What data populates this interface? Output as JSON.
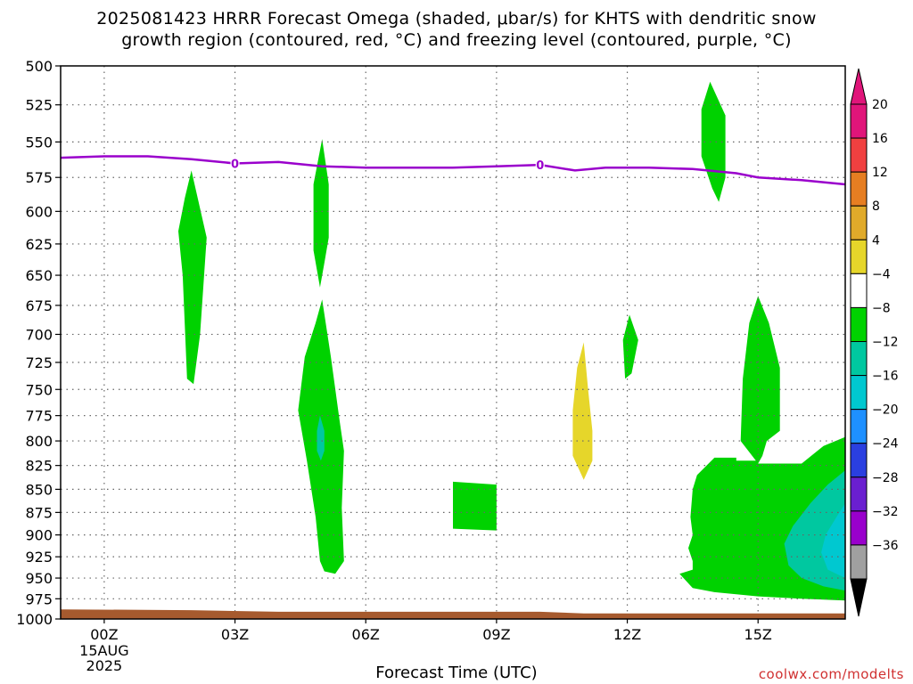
{
  "title_line1": "2025081423 HRRR Forecast Omega (shaded, μbar/s) for KHTS with dendritic snow",
  "title_line2": "growth region (contoured, red, °C) and freezing level (contoured, purple, °C)",
  "xlabel": "Forecast Time (UTC)",
  "credit": "coolwx.com/modelts",
  "chart_data": {
    "type": "contour",
    "x_unit": "forecast hours since 2025-08-15 00Z",
    "xlim": [
      -1.0,
      17.0
    ],
    "xticks": [
      {
        "value": 0,
        "label": "00Z",
        "sub": [
          "15AUG",
          "2025"
        ]
      },
      {
        "value": 3,
        "label": "03Z"
      },
      {
        "value": 6,
        "label": "06Z"
      },
      {
        "value": 9,
        "label": "09Z"
      },
      {
        "value": 12,
        "label": "12Z"
      },
      {
        "value": 15,
        "label": "15Z"
      }
    ],
    "ylabel": "",
    "ylim": [
      1000,
      500
    ],
    "yticks": [
      500,
      525,
      550,
      575,
      600,
      625,
      650,
      675,
      700,
      725,
      750,
      775,
      800,
      825,
      850,
      875,
      900,
      925,
      950,
      975,
      1000
    ],
    "y_scale": "log-pressure",
    "grid": true,
    "terrain": {
      "color": "#a65a2e",
      "top_pressure": [
        [
          -1.0,
          988
        ],
        [
          2.0,
          989
        ],
        [
          4.0,
          991
        ],
        [
          10.0,
          991
        ],
        [
          11.0,
          993
        ],
        [
          17.0,
          993
        ]
      ]
    },
    "freezing_level": {
      "color": "#9a00cc",
      "label": "0",
      "label_positions": [
        [
          3.0,
          565
        ],
        [
          10.0,
          566
        ]
      ],
      "points": [
        [
          -1.0,
          561
        ],
        [
          0.0,
          560
        ],
        [
          1.0,
          560
        ],
        [
          2.0,
          562
        ],
        [
          3.0,
          565
        ],
        [
          4.0,
          564
        ],
        [
          5.0,
          567
        ],
        [
          6.0,
          568
        ],
        [
          7.0,
          568
        ],
        [
          8.0,
          568
        ],
        [
          9.0,
          567
        ],
        [
          10.0,
          566
        ],
        [
          10.8,
          570
        ],
        [
          11.5,
          568
        ],
        [
          12.5,
          568
        ],
        [
          13.5,
          569
        ],
        [
          14.5,
          572
        ],
        [
          15.0,
          575
        ],
        [
          16.0,
          577
        ],
        [
          17.0,
          580
        ]
      ]
    },
    "colorbar": {
      "levels": [
        -36,
        -32,
        -28,
        -24,
        -20,
        -16,
        -12,
        -8,
        -4,
        4,
        8,
        12,
        16,
        20
      ],
      "colors": [
        "#a0a0a0",
        "#9900cc",
        "#6a1fd0",
        "#2a3fe0",
        "#1e90ff",
        "#00c8d0",
        "#00c8a0",
        "#00d200",
        "#ffffff",
        "#e6d62a",
        "#e0aa2a",
        "#e67e22",
        "#f04040",
        "#e0157a"
      ],
      "under_color": "#000000",
      "over_color": "#e0157a"
    },
    "regions": [
      {
        "range": "-8 to -4",
        "color": "#00d200",
        "polygon": [
          [
            2.0,
            570
          ],
          [
            2.35,
            620
          ],
          [
            2.2,
            700
          ],
          [
            2.05,
            745
          ],
          [
            1.9,
            740
          ],
          [
            1.8,
            650
          ],
          [
            1.7,
            615
          ],
          [
            1.85,
            590
          ]
        ]
      },
      {
        "range": "-8 to -4",
        "color": "#00d200",
        "polygon": [
          [
            5.0,
            548
          ],
          [
            5.15,
            580
          ],
          [
            5.15,
            620
          ],
          [
            5.05,
            640
          ],
          [
            4.95,
            660
          ],
          [
            4.8,
            630
          ],
          [
            4.8,
            580
          ]
        ]
      },
      {
        "range": "-8 to -4",
        "color": "#00d200",
        "polygon": [
          [
            5.0,
            670
          ],
          [
            5.2,
            720
          ],
          [
            5.4,
            780
          ],
          [
            5.5,
            810
          ],
          [
            5.45,
            870
          ],
          [
            5.5,
            930
          ],
          [
            5.3,
            945
          ],
          [
            5.05,
            942
          ],
          [
            4.95,
            930
          ],
          [
            4.85,
            880
          ],
          [
            4.65,
            820
          ],
          [
            4.45,
            770
          ],
          [
            4.6,
            720
          ],
          [
            4.85,
            690
          ]
        ]
      },
      {
        "range": "-12 to -8",
        "color": "#00c8a0",
        "polygon": [
          [
            4.95,
            775
          ],
          [
            5.05,
            790
          ],
          [
            5.05,
            810
          ],
          [
            4.97,
            820
          ],
          [
            4.88,
            810
          ],
          [
            4.88,
            790
          ]
        ]
      },
      {
        "range": "-8 to -4",
        "color": "#00d200",
        "polygon": [
          [
            8.0,
            842
          ],
          [
            9.0,
            845
          ],
          [
            9.0,
            895
          ],
          [
            8.0,
            893
          ]
        ]
      },
      {
        "range": "4 to 8",
        "color": "#e6d62a",
        "polygon": [
          [
            11.0,
            707
          ],
          [
            11.1,
            750
          ],
          [
            11.2,
            790
          ],
          [
            11.2,
            820
          ],
          [
            11.0,
            840
          ],
          [
            10.75,
            815
          ],
          [
            10.75,
            770
          ],
          [
            10.85,
            730
          ]
        ]
      },
      {
        "range": "-8 to -4",
        "color": "#00d200",
        "polygon": [
          [
            12.05,
            683
          ],
          [
            12.25,
            705
          ],
          [
            12.1,
            735
          ],
          [
            11.95,
            740
          ],
          [
            11.9,
            705
          ]
        ]
      },
      {
        "range": "-8 to -4",
        "color": "#00d200",
        "polygon": [
          [
            13.9,
            510
          ],
          [
            14.25,
            532
          ],
          [
            14.25,
            575
          ],
          [
            14.1,
            593
          ],
          [
            13.95,
            583
          ],
          [
            13.7,
            560
          ],
          [
            13.7,
            528
          ]
        ]
      },
      {
        "range": "-8 to -4",
        "color": "#00d200",
        "polygon": [
          [
            15.0,
            667
          ],
          [
            15.25,
            690
          ],
          [
            15.5,
            730
          ],
          [
            15.5,
            790
          ],
          [
            15.2,
            800
          ],
          [
            15.1,
            815
          ],
          [
            15.0,
            823
          ],
          [
            16.0,
            823
          ],
          [
            16.5,
            805
          ],
          [
            17.0,
            796
          ],
          [
            17.0,
            977
          ],
          [
            16.0,
            975
          ],
          [
            15.0,
            972
          ],
          [
            14.0,
            967
          ],
          [
            13.5,
            962
          ],
          [
            13.2,
            945
          ],
          [
            13.5,
            940
          ],
          [
            13.5,
            930
          ],
          [
            13.4,
            915
          ],
          [
            13.5,
            900
          ],
          [
            13.45,
            880
          ],
          [
            13.5,
            850
          ],
          [
            13.6,
            835
          ],
          [
            14.0,
            817
          ],
          [
            14.5,
            817
          ],
          [
            14.5,
            820
          ],
          [
            14.95,
            820
          ],
          [
            14.6,
            800
          ],
          [
            14.65,
            740
          ],
          [
            14.8,
            690
          ]
        ]
      },
      {
        "range": "-12 to -8",
        "color": "#00c8a0",
        "polygon": [
          [
            17.0,
            830
          ],
          [
            16.6,
            845
          ],
          [
            16.2,
            865
          ],
          [
            15.8,
            890
          ],
          [
            15.6,
            910
          ],
          [
            15.7,
            935
          ],
          [
            16.0,
            950
          ],
          [
            16.5,
            960
          ],
          [
            17.0,
            965
          ]
        ]
      },
      {
        "range": "-16 to -12",
        "color": "#00c8d0",
        "polygon": [
          [
            17.0,
            865
          ],
          [
            16.8,
            880
          ],
          [
            16.55,
            900
          ],
          [
            16.45,
            920
          ],
          [
            16.6,
            940
          ],
          [
            17.0,
            950
          ]
        ]
      }
    ]
  }
}
